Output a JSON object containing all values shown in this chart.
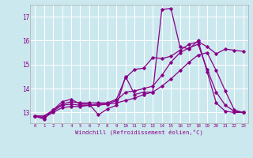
{
  "background_color": "#cce8ef",
  "line_color": "#880088",
  "xlabel": "Windchill (Refroidissement éolien,°C)",
  "ylabel_ticks": [
    13,
    14,
    15,
    16,
    17
  ],
  "xlim": [
    -0.5,
    23.5
  ],
  "ylim": [
    12.55,
    17.5
  ],
  "xticks": [
    0,
    1,
    2,
    3,
    4,
    5,
    6,
    7,
    8,
    9,
    10,
    11,
    12,
    13,
    14,
    15,
    16,
    17,
    18,
    19,
    20,
    21,
    22,
    23
  ],
  "series": [
    [
      12.85,
      12.72,
      13.1,
      13.45,
      13.55,
      13.35,
      13.35,
      12.9,
      13.15,
      13.3,
      14.5,
      13.75,
      13.85,
      13.85,
      17.3,
      17.35,
      15.75,
      15.65,
      16.0,
      14.7,
      13.4,
      13.05,
      13.0,
      13.0
    ],
    [
      12.85,
      12.85,
      13.1,
      13.35,
      13.45,
      13.4,
      13.4,
      13.4,
      13.4,
      13.55,
      14.45,
      14.8,
      14.85,
      15.3,
      15.25,
      15.35,
      15.6,
      15.85,
      15.95,
      15.75,
      15.45,
      15.65,
      15.6,
      15.55
    ],
    [
      12.85,
      12.85,
      13.05,
      13.3,
      13.35,
      13.3,
      13.3,
      13.3,
      13.35,
      13.5,
      13.85,
      13.9,
      14.0,
      14.1,
      14.55,
      15.1,
      15.5,
      15.7,
      15.85,
      14.8,
      13.85,
      13.3,
      13.05,
      13.0
    ],
    [
      12.85,
      12.78,
      13.0,
      13.2,
      13.25,
      13.25,
      13.3,
      13.35,
      13.35,
      13.4,
      13.5,
      13.6,
      13.75,
      13.85,
      14.1,
      14.4,
      14.75,
      15.1,
      15.4,
      15.5,
      14.75,
      13.9,
      13.1,
      13.0
    ]
  ]
}
